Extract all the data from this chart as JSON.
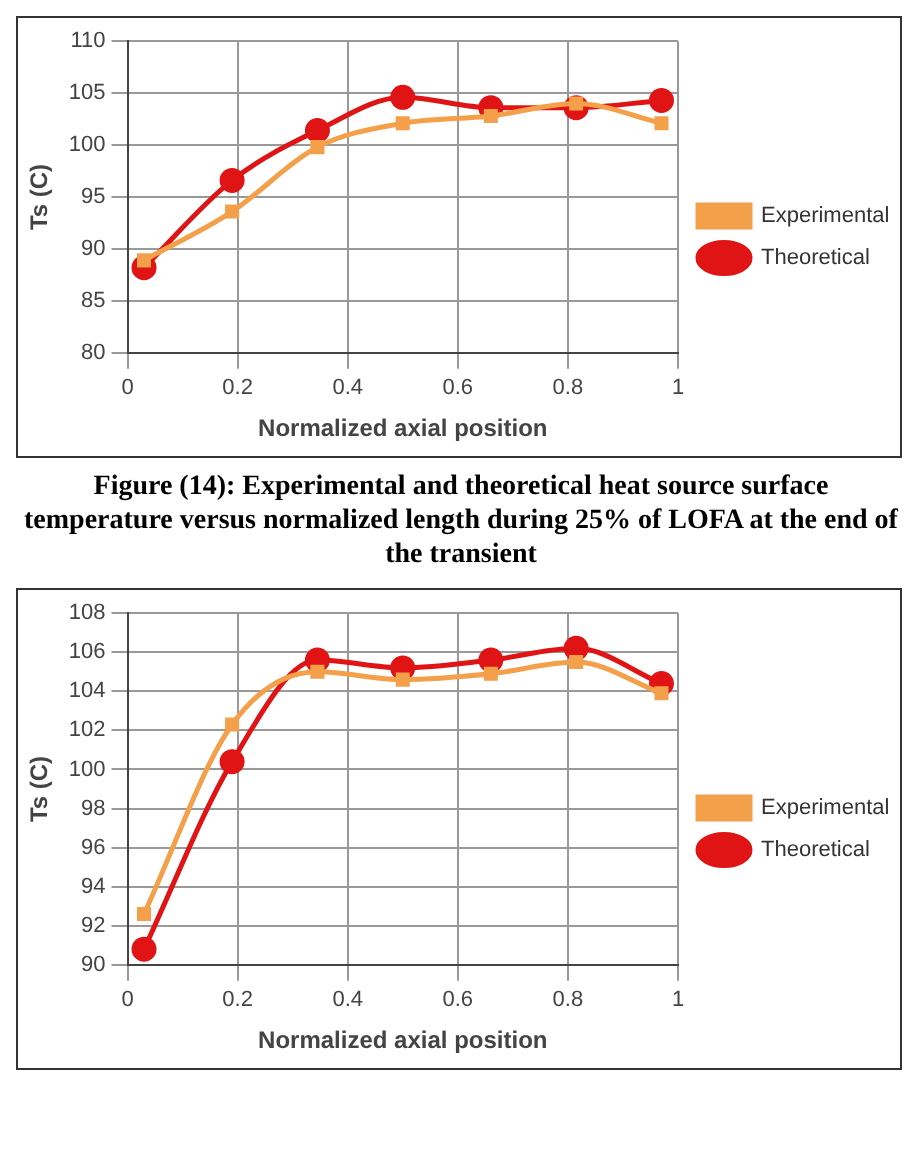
{
  "chart_data": [
    {
      "type": "line",
      "xlabel": "Normalized axial position",
      "ylabel": "Ts (C)",
      "x": [
        0.03,
        0.19,
        0.345,
        0.5,
        0.66,
        0.815,
        0.97
      ],
      "xlim": [
        0,
        1
      ],
      "xticks": [
        0,
        0.2,
        0.4,
        0.6,
        0.8,
        1
      ],
      "ylim": [
        80,
        110
      ],
      "yticks": [
        80,
        85,
        90,
        95,
        100,
        105,
        110
      ],
      "grid": true,
      "legend": "right",
      "annotations": [
        "Figure (14): Experimental and theoretical heat source surface temperature versus normalized length during 25% of LOFA at the end of the transient"
      ],
      "series": [
        {
          "name": "Experimental",
          "color": "#f4a04a",
          "marker": "square",
          "values": [
            88.9,
            93.6,
            99.8,
            102.1,
            102.8,
            104.0,
            102.1
          ]
        },
        {
          "name": "Theoretical",
          "color": "#e01414",
          "marker": "circle",
          "values": [
            88.2,
            96.6,
            101.4,
            104.6,
            103.6,
            103.6,
            104.3
          ]
        }
      ]
    },
    {
      "type": "line",
      "xlabel": "Normalized axial position",
      "ylabel": "Ts (C)",
      "x": [
        0.03,
        0.19,
        0.345,
        0.5,
        0.66,
        0.815,
        0.97
      ],
      "xlim": [
        0,
        1
      ],
      "xticks": [
        0,
        0.2,
        0.4,
        0.6,
        0.8,
        1
      ],
      "ylim": [
        90,
        108
      ],
      "yticks": [
        90,
        92,
        94,
        96,
        98,
        100,
        102,
        104,
        106,
        108
      ],
      "grid": true,
      "legend": "right",
      "series": [
        {
          "name": "Experimental",
          "color": "#f4a04a",
          "marker": "square",
          "values": [
            92.6,
            102.3,
            105.0,
            104.6,
            104.9,
            105.5,
            103.9
          ]
        },
        {
          "name": "Theoretical",
          "color": "#e01414",
          "marker": "circle",
          "values": [
            90.8,
            100.4,
            105.6,
            105.2,
            105.6,
            106.2,
            104.4
          ]
        }
      ]
    }
  ]
}
